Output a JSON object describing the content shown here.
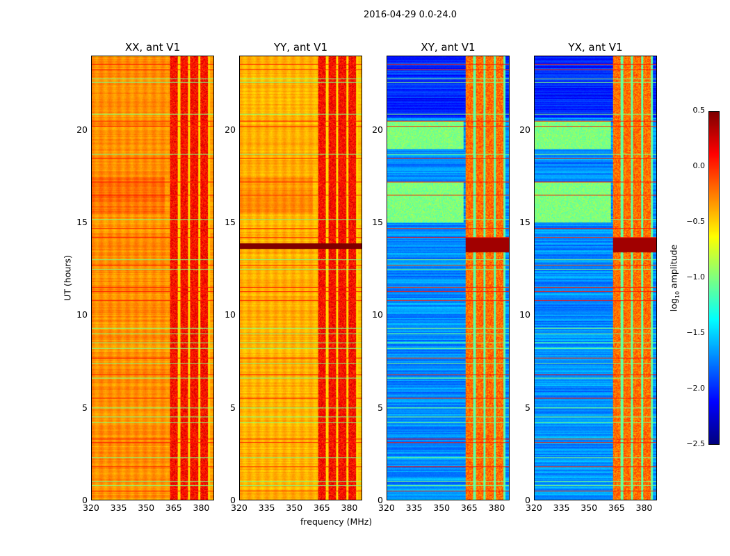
{
  "figure_title": "2016-04-29 0.0-24.0",
  "chart_data": {
    "type": "heatmap",
    "title": "2016-04-29 0.0-24.0",
    "xlabel": "frequency (MHz)",
    "ylabel": "UT (hours)",
    "xlim": [
      320,
      387
    ],
    "ylim": [
      0,
      24
    ],
    "xticks": [
      "320",
      "335",
      "350",
      "365",
      "380"
    ],
    "xtick_values": [
      320,
      335,
      350,
      365,
      380
    ],
    "yticks": [
      "0",
      "5",
      "10",
      "15",
      "20"
    ],
    "ytick_values": [
      0,
      5,
      10,
      15,
      20
    ],
    "colormap": "jet",
    "colorbar": {
      "label_prefix": "log",
      "label_sub": "10",
      "label_suffix": " amplitude",
      "range": [
        -2.5,
        0.5
      ],
      "ticks": [
        "0.5",
        "0.0",
        "−0.5",
        "−1.0",
        "−1.5",
        "−2.0",
        "−2.5"
      ],
      "tick_values": [
        0.5,
        0.0,
        -0.5,
        -1.0,
        -1.5,
        -2.0,
        -2.5
      ]
    },
    "rfi_hours_low": [
      0.8,
      1.0,
      2.3,
      4.2,
      4.5,
      5.0,
      6.6,
      7.4,
      8.2,
      8.5,
      9.0,
      9.3,
      12.5,
      13.0,
      15.2,
      18.7,
      20.9,
      22.6,
      22.8
    ],
    "rfi_hours_high": [
      0.5,
      1.8,
      3.1,
      3.3,
      5.5,
      6.8,
      7.7,
      10.8,
      11.3,
      11.5,
      12.7,
      14.2,
      14.7,
      16.5,
      17.2,
      18.5,
      20.2,
      20.5,
      23.3,
      23.6
    ],
    "panels": [
      {
        "title": "XX, ant V1",
        "baseline_level": -0.3,
        "high_band_level": 0.1,
        "high_band_mhz": [
          363,
          385
        ]
      },
      {
        "title": "YY, ant V1",
        "baseline_level": -0.4,
        "high_band_level": 0.1,
        "high_band_mhz": [
          363,
          385
        ],
        "saturated_hours": [
          13.6,
          13.9
        ]
      },
      {
        "title": "XY, ant V1",
        "baseline_level": -1.7,
        "high_band_level": -0.2,
        "high_band_mhz": [
          363,
          385
        ],
        "bright_hours": [
          13.4,
          14.2
        ],
        "elevated_hours": [
          [
            15,
            17.2
          ],
          [
            19,
            20.5
          ]
        ]
      },
      {
        "title": "YX, ant V1",
        "baseline_level": -1.7,
        "high_band_level": -0.2,
        "high_band_mhz": [
          363,
          385
        ],
        "bright_hours": [
          13.4,
          14.2
        ],
        "elevated_hours": [
          [
            15,
            17.2
          ],
          [
            19,
            20.5
          ]
        ]
      }
    ]
  }
}
